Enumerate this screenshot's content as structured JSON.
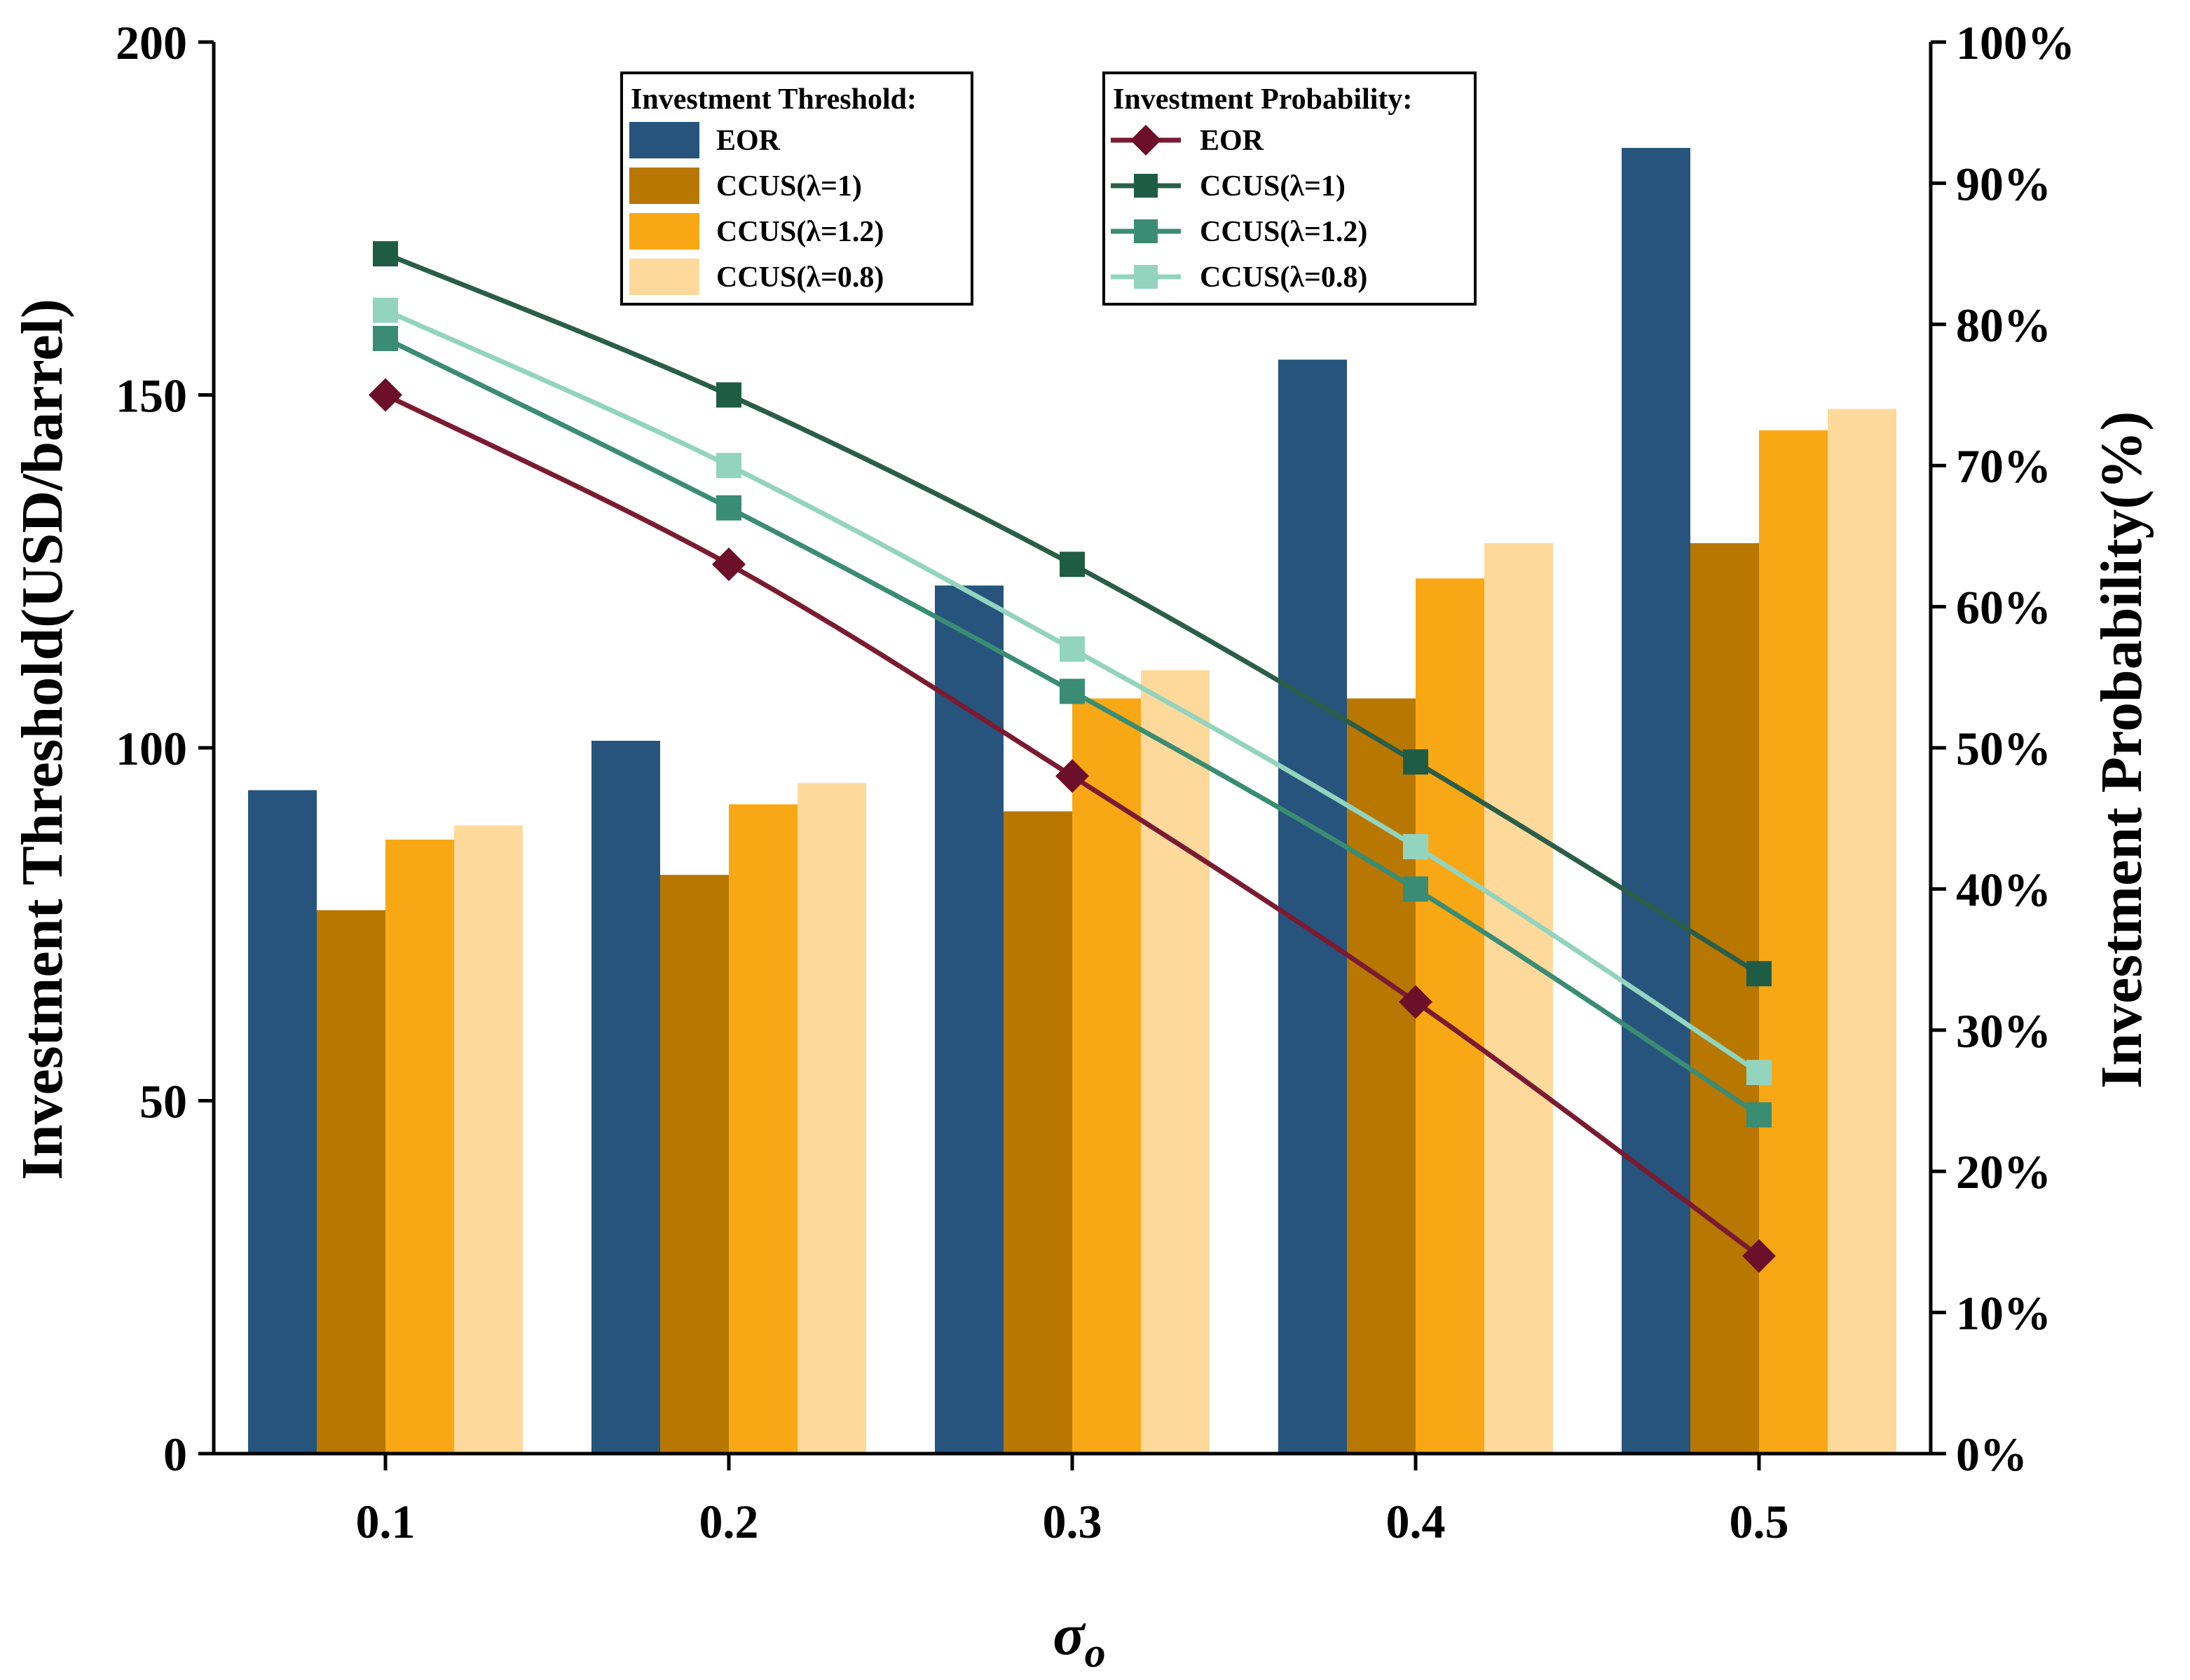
{
  "chart_data": {
    "type": "bar",
    "categories": [
      "0.1",
      "0.2",
      "0.3",
      "0.4",
      "0.5"
    ],
    "xlabel": "σ",
    "xlabel_sub": "o",
    "ylabel_left": "Investment Threshold(USD/barrel)",
    "ylabel_right": "Investment Probability(%)",
    "ylim_left": [
      0,
      200
    ],
    "ylim_right": [
      0,
      100
    ],
    "left_ticks": [
      "0",
      "50",
      "100",
      "150",
      "200"
    ],
    "right_ticks": [
      "0%",
      "10%",
      "20%",
      "30%",
      "40%",
      "50%",
      "60%",
      "70%",
      "80%",
      "90%",
      "100%"
    ],
    "bar_series": [
      {
        "name": "EOR",
        "color": "#26547c",
        "values": [
          94,
          101,
          123,
          155,
          185
        ]
      },
      {
        "name": "CCUS(λ=1)",
        "color": "#b87700",
        "values": [
          77,
          82,
          91,
          107,
          129
        ]
      },
      {
        "name": "CCUS(λ=1.2)",
        "color": "#f9a815",
        "values": [
          87,
          92,
          107,
          124,
          145
        ]
      },
      {
        "name": "CCUS(λ=0.8)",
        "color": "#fdd99b",
        "values": [
          89,
          95,
          111,
          129,
          148
        ]
      }
    ],
    "line_series": [
      {
        "name": "EOR",
        "color": "#6b0f2a",
        "line_color": "#7b1b32",
        "marker": "diamond",
        "values": [
          75,
          63,
          48,
          32,
          14
        ]
      },
      {
        "name": "CCUS(λ=1)",
        "color": "#1e5c45",
        "line_color": "#2a5e48",
        "marker": "square",
        "values": [
          85,
          75,
          63,
          49,
          34
        ]
      },
      {
        "name": "CCUS(λ=1.2)",
        "color": "#3a8c73",
        "line_color": "#3a8c73",
        "marker": "square",
        "values": [
          79,
          67,
          54,
          40,
          24
        ]
      },
      {
        "name": "CCUS(λ=0.8)",
        "color": "#93d4bf",
        "line_color": "#93d4bf",
        "marker": "square",
        "values": [
          81,
          70,
          57,
          43,
          27
        ]
      }
    ],
    "legend_bars_title": "Investment Threshold:",
    "legend_lines_title": "Investment Probability:"
  }
}
